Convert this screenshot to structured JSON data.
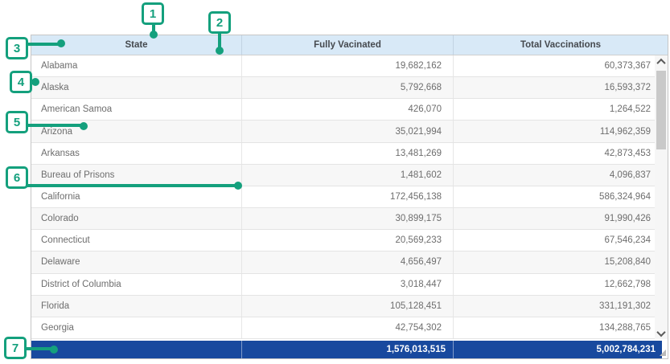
{
  "table": {
    "columns": [
      {
        "label": "State"
      },
      {
        "label": "Fully Vacinated"
      },
      {
        "label": "Total Vaccinations"
      }
    ],
    "rows": [
      {
        "state": "Alabama",
        "fully": "19,682,162",
        "total": "60,373,367"
      },
      {
        "state": "Alaska",
        "fully": "5,792,668",
        "total": "16,593,372"
      },
      {
        "state": "American Samoa",
        "fully": "426,070",
        "total": "1,264,522"
      },
      {
        "state": "Arizona",
        "fully": "35,021,994",
        "total": "114,962,359"
      },
      {
        "state": "Arkansas",
        "fully": "13,481,269",
        "total": "42,873,453"
      },
      {
        "state": "Bureau of Prisons",
        "fully": "1,481,602",
        "total": "4,096,837"
      },
      {
        "state": "California",
        "fully": "172,456,138",
        "total": "586,324,964"
      },
      {
        "state": "Colorado",
        "fully": "30,899,175",
        "total": "91,990,426"
      },
      {
        "state": "Connecticut",
        "fully": "20,569,233",
        "total": "67,546,234"
      },
      {
        "state": "Delaware",
        "fully": "4,656,497",
        "total": "15,208,840"
      },
      {
        "state": "District of Columbia",
        "fully": "3,018,447",
        "total": "12,662,798"
      },
      {
        "state": "Florida",
        "fully": "105,128,451",
        "total": "331,191,302"
      },
      {
        "state": "Georgia",
        "fully": "42,754,302",
        "total": "134,288,765"
      }
    ],
    "totals": {
      "state": "",
      "fully": "1,576,013,515",
      "total": "5,002,784,231"
    }
  },
  "annotations": {
    "accent_color": "#14a07d",
    "items": [
      {
        "label": "1"
      },
      {
        "label": "2"
      },
      {
        "label": "3"
      },
      {
        "label": "4"
      },
      {
        "label": "5"
      },
      {
        "label": "6"
      },
      {
        "label": "7"
      }
    ]
  },
  "colors": {
    "header_bg": "#d8e9f7",
    "totals_bg": "#18499e",
    "alt_row_bg": "#f7f7f7",
    "body_text": "#6d6d6d"
  },
  "icons": {
    "scroll_up": "chevron-up-icon",
    "scroll_down": "chevron-down-icon"
  }
}
